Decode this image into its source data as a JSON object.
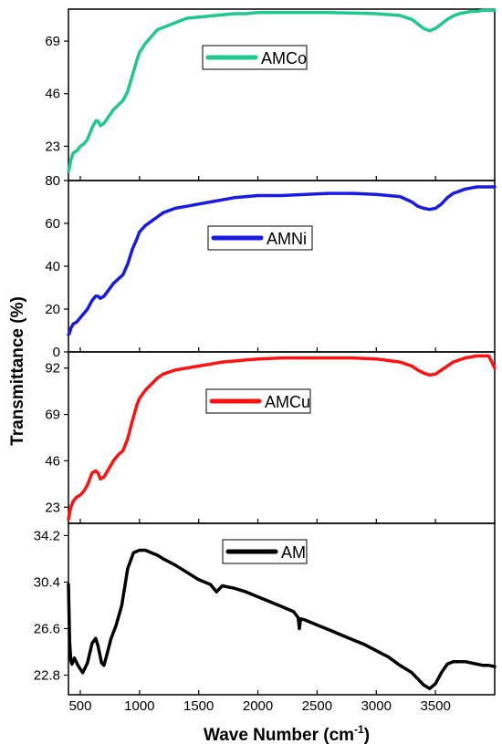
{
  "chart_data": {
    "type": "line",
    "layout": "stacked-panels",
    "xlabel": "Wave Number (cm",
    "xlabel_sup": "-1",
    "xlabel_end": ")",
    "ylabel": "Transmittance (%)",
    "xlim": [
      400,
      4000
    ],
    "xticks": [
      500,
      1000,
      1500,
      2000,
      2500,
      3000,
      3500
    ],
    "grid": false,
    "panels": [
      {
        "name": "AMCo",
        "color": "#1ec98f",
        "ylim": [
          8,
          83
        ],
        "yticks": [
          23,
          46,
          69
        ],
        "legend": "AMCo",
        "x": [
          400,
          410,
          420,
          440,
          470,
          500,
          530,
          560,
          600,
          630,
          650,
          670,
          700,
          740,
          780,
          820,
          860,
          900,
          940,
          980,
          1000,
          1050,
          1100,
          1150,
          1200,
          1300,
          1400,
          1500,
          1600,
          1700,
          1800,
          1900,
          2000,
          2200,
          2400,
          2600,
          2800,
          3000,
          3200,
          3300,
          3350,
          3400,
          3450,
          3500,
          3550,
          3600,
          3650,
          3700,
          3750,
          3800,
          3850,
          3900,
          3950,
          4000
        ],
        "y": [
          12,
          14,
          17,
          20,
          21,
          23,
          24,
          26,
          31,
          34,
          34,
          32,
          33,
          36,
          39,
          41,
          43,
          47,
          54,
          61,
          64,
          68,
          71,
          74,
          75,
          77,
          79,
          79.5,
          80,
          80.5,
          81,
          81,
          81.5,
          81.5,
          81.5,
          81.5,
          81.3,
          81,
          80.2,
          78.5,
          76.5,
          74.5,
          73.5,
          74.5,
          76.5,
          78.5,
          80,
          81,
          81.5,
          82,
          82,
          82.5,
          82.5,
          82.5
        ]
      },
      {
        "name": "AMNi",
        "color": "#1a1ae6",
        "ylim": [
          0,
          80
        ],
        "yticks": [
          0,
          20,
          40,
          60,
          80
        ],
        "legend": "AMNi",
        "x": [
          400,
          410,
          420,
          440,
          470,
          500,
          530,
          560,
          600,
          630,
          650,
          670,
          700,
          740,
          780,
          820,
          860,
          900,
          940,
          980,
          1000,
          1050,
          1100,
          1150,
          1200,
          1300,
          1400,
          1500,
          1600,
          1700,
          1800,
          1900,
          2000,
          2200,
          2400,
          2600,
          2800,
          3000,
          3200,
          3300,
          3350,
          3400,
          3450,
          3500,
          3550,
          3600,
          3650,
          3700,
          3750,
          3800,
          3850,
          3900,
          3950,
          4000
        ],
        "y": [
          8,
          9,
          11,
          13,
          14,
          16,
          18,
          20,
          24,
          26,
          26,
          25,
          26,
          29,
          32,
          34,
          36,
          41,
          48,
          53,
          56,
          59,
          61,
          63,
          65,
          67,
          68,
          69,
          70,
          71,
          72,
          72.5,
          73,
          73,
          73.5,
          74,
          74,
          73.5,
          72.5,
          70,
          68,
          67,
          66.5,
          67,
          69,
          72,
          74,
          75,
          76,
          76.5,
          77,
          77,
          77,
          77
        ]
      },
      {
        "name": "AMCu",
        "color": "#ff1111",
        "ylim": [
          15,
          100
        ],
        "yticks": [
          23,
          46,
          69,
          92
        ],
        "legend": "AMCu",
        "x": [
          400,
          410,
          420,
          440,
          470,
          500,
          530,
          560,
          600,
          630,
          650,
          670,
          700,
          740,
          780,
          820,
          860,
          900,
          940,
          980,
          1000,
          1050,
          1100,
          1150,
          1200,
          1300,
          1400,
          1500,
          1600,
          1700,
          1800,
          1900,
          2000,
          2200,
          2400,
          2600,
          2800,
          3000,
          3200,
          3300,
          3350,
          3400,
          3450,
          3500,
          3550,
          3600,
          3650,
          3700,
          3750,
          3800,
          3850,
          3900,
          3950,
          4000
        ],
        "y": [
          17,
          20,
          23,
          26,
          28,
          29,
          31,
          34,
          40,
          41,
          40,
          37,
          38,
          42,
          46,
          49,
          51,
          57,
          66,
          74,
          77,
          81,
          84,
          87,
          89,
          91,
          92,
          93,
          94,
          95,
          95.5,
          96,
          96.5,
          97,
          97,
          97,
          97,
          96.5,
          95,
          93,
          91,
          89.5,
          88.5,
          89,
          91,
          93,
          95,
          96,
          97,
          97.5,
          98,
          98,
          98,
          92
        ]
      },
      {
        "name": "AM",
        "color": "#000000",
        "ylim": [
          21.2,
          35.2
        ],
        "yticks": [
          22.8,
          26.6,
          30.4,
          34.2
        ],
        "legend": "AM",
        "x": [
          400,
          405,
          410,
          420,
          430,
          450,
          480,
          520,
          560,
          600,
          630,
          650,
          680,
          700,
          720,
          760,
          800,
          850,
          900,
          950,
          1000,
          1050,
          1100,
          1150,
          1200,
          1300,
          1400,
          1500,
          1600,
          1650,
          1700,
          1800,
          1900,
          2000,
          2100,
          2200,
          2300,
          2340,
          2350,
          2360,
          2400,
          2500,
          2600,
          2700,
          2800,
          2900,
          3000,
          3100,
          3200,
          3300,
          3400,
          3450,
          3500,
          3550,
          3600,
          3650,
          3700,
          3750,
          3800,
          3850,
          3900,
          3950,
          4000
        ],
        "y": [
          30.2,
          28,
          25.5,
          24,
          23.7,
          24.2,
          23.6,
          23,
          23.8,
          25.4,
          25.8,
          25.2,
          23.8,
          23.6,
          24.3,
          25.8,
          26.8,
          28.5,
          31.5,
          32.8,
          33.0,
          33.0,
          32.8,
          32.6,
          32.3,
          31.8,
          31.2,
          30.6,
          30.2,
          29.6,
          30.1,
          29.9,
          29.6,
          29.2,
          28.8,
          28.4,
          28.0,
          27.5,
          26.6,
          27.4,
          27.3,
          26.9,
          26.5,
          26.1,
          25.7,
          25.3,
          24.8,
          24.3,
          23.6,
          23.0,
          22.0,
          21.7,
          22.1,
          23.0,
          23.7,
          23.9,
          23.9,
          23.9,
          23.8,
          23.7,
          23.6,
          23.6,
          23.5
        ]
      }
    ]
  }
}
